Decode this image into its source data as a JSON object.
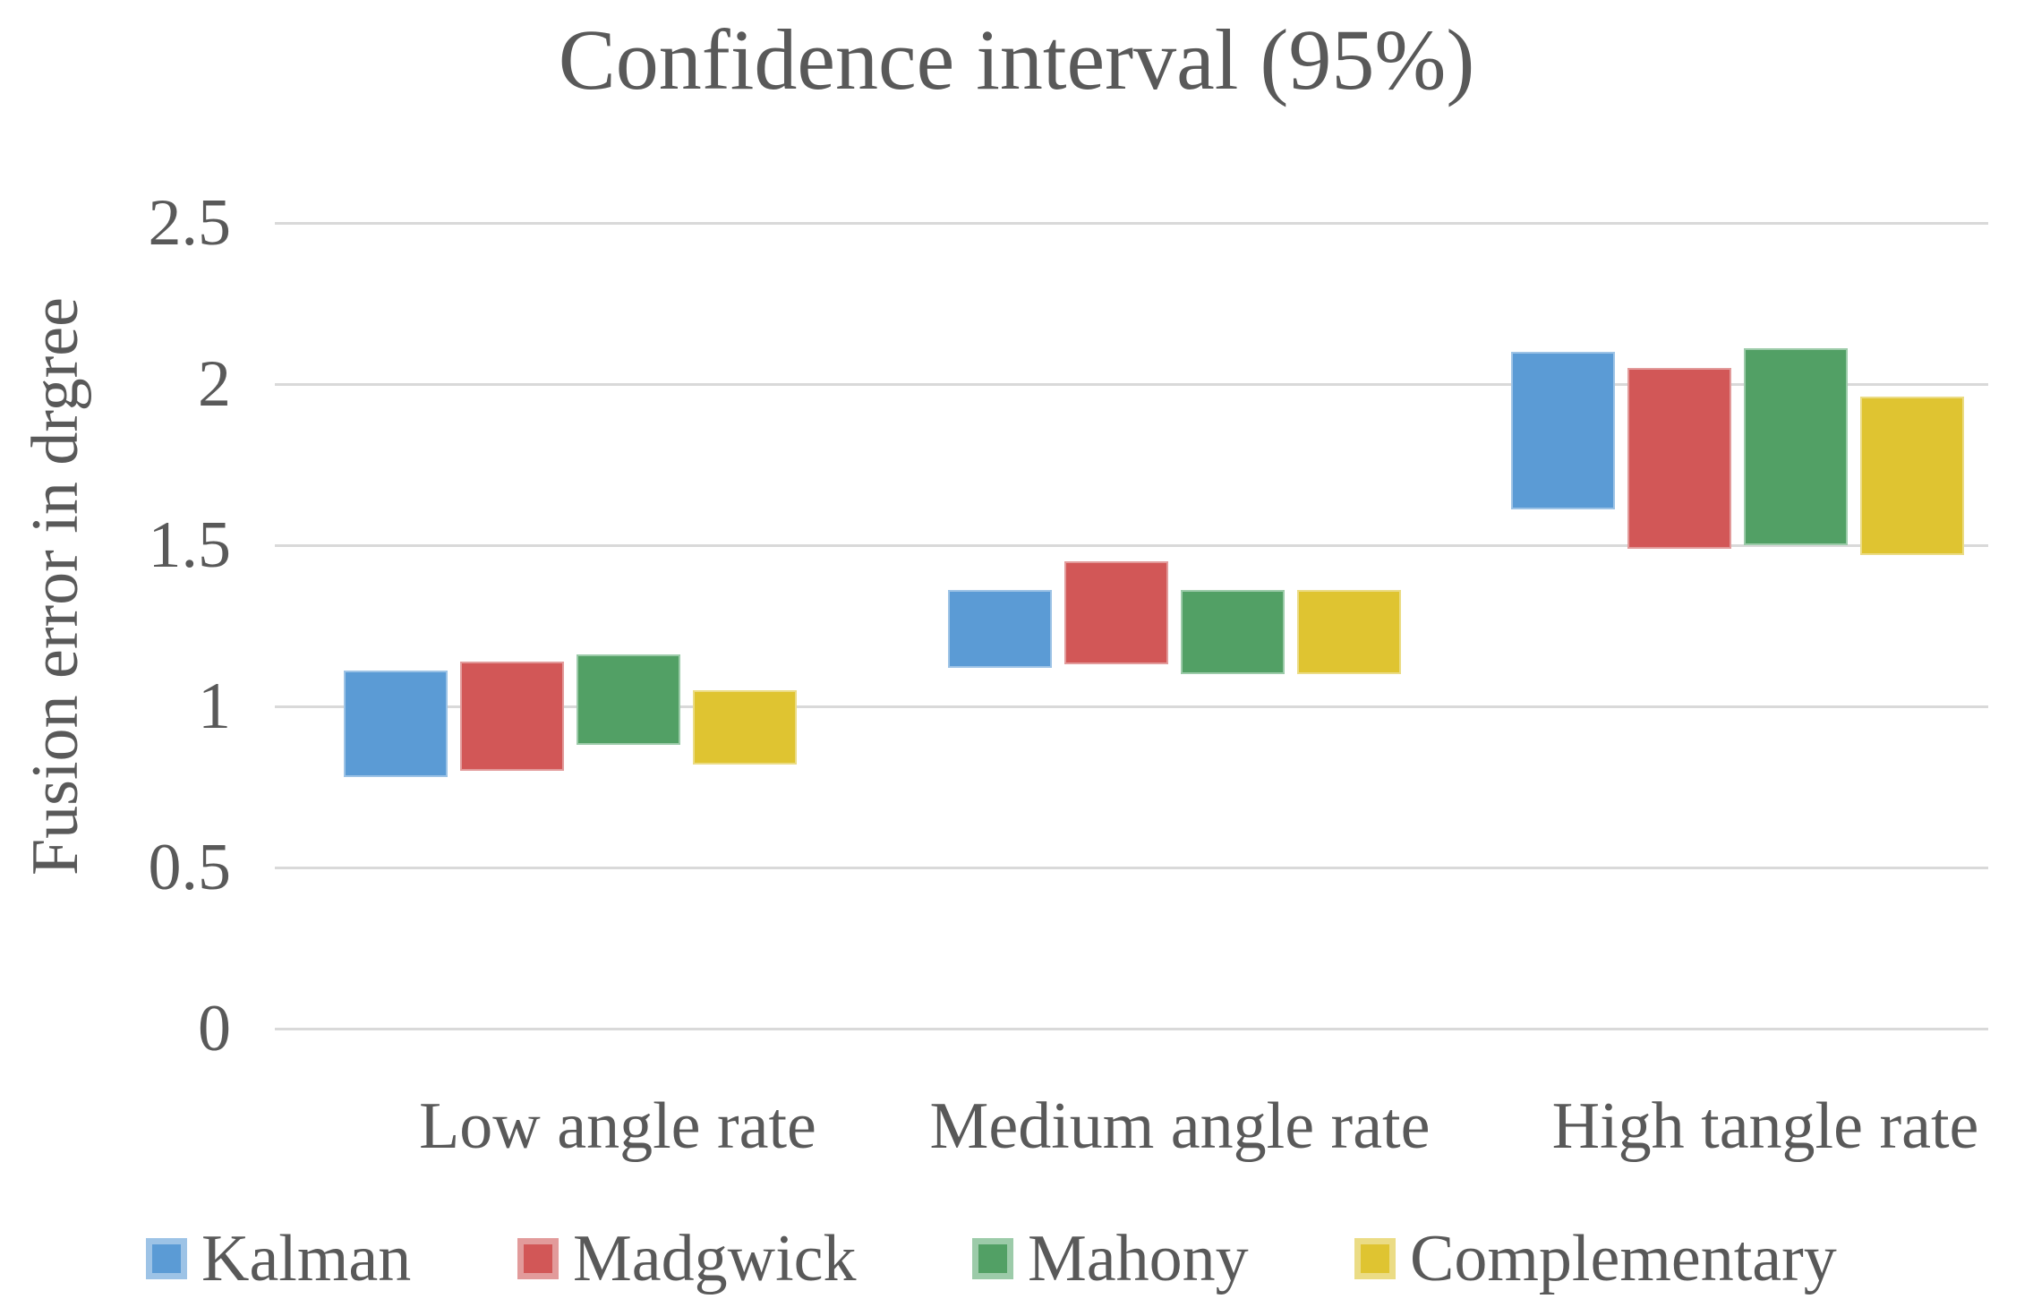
{
  "figure": {
    "background_color": "#FFFFFF",
    "text_color": "#595959",
    "gridline_color": "#D9D9D9"
  },
  "chart_data": {
    "type": "bar",
    "subtype": "floating-range-bar",
    "title": "Confidence interval (95%)",
    "xlabel": "",
    "ylabel": "Fusion error in drgree",
    "categories": [
      "Low angle rate",
      "Medium angle rate",
      "High tangle rate"
    ],
    "series": [
      {
        "name": "Kalman",
        "color": "#5B9BD5",
        "border_color": "#9DC3E6",
        "ranges": [
          [
            0.78,
            1.11
          ],
          [
            1.12,
            1.36
          ],
          [
            1.61,
            2.1
          ]
        ]
      },
      {
        "name": "Madgwick",
        "color": "#D25757",
        "border_color": "#E29B9B",
        "ranges": [
          [
            0.8,
            1.14
          ],
          [
            1.13,
            1.45
          ],
          [
            1.49,
            2.05
          ]
        ]
      },
      {
        "name": "Mahony",
        "color": "#52A065",
        "border_color": "#9CCBA9",
        "ranges": [
          [
            0.88,
            1.16
          ],
          [
            1.1,
            1.36
          ],
          [
            1.5,
            2.11
          ]
        ]
      },
      {
        "name": "Complementary",
        "color": "#DFC431",
        "border_color": "#EBDC85",
        "ranges": [
          [
            0.82,
            1.05
          ],
          [
            1.1,
            1.36
          ],
          [
            1.47,
            1.96
          ]
        ]
      }
    ],
    "ylim": [
      0,
      2.5
    ],
    "yticks": [
      "0",
      "0.5",
      "1",
      "1.5",
      "2",
      "2.5"
    ],
    "grid": "horizontal",
    "legend_position": "bottom"
  }
}
